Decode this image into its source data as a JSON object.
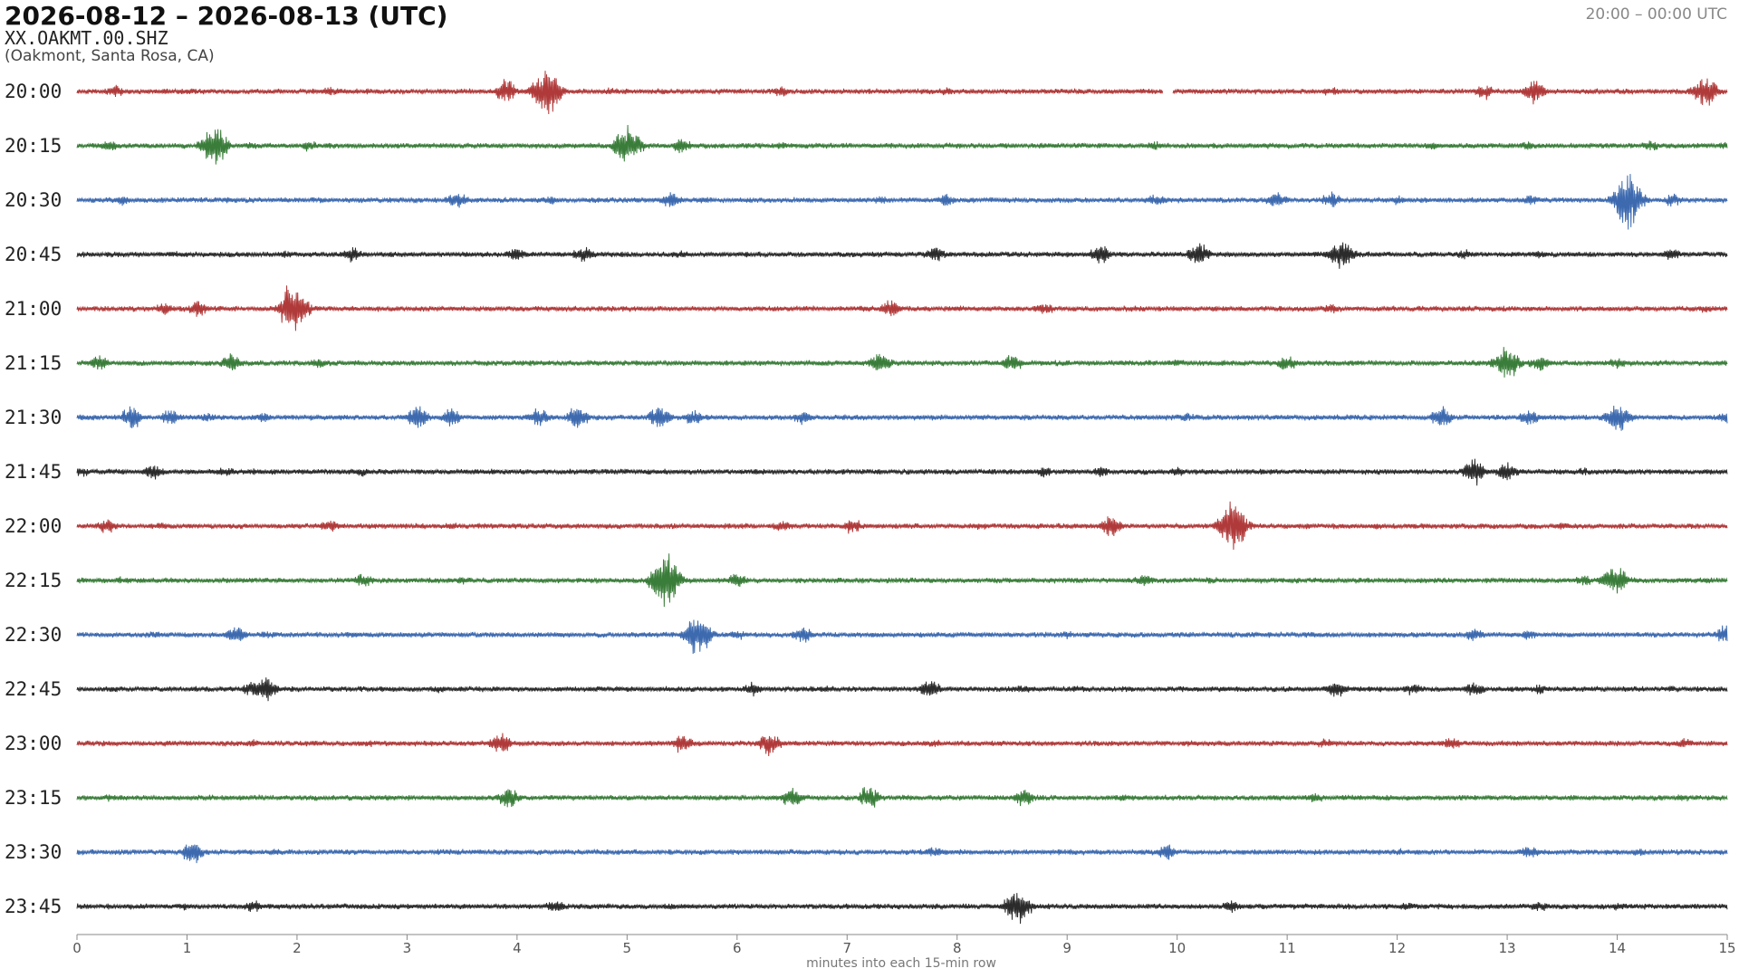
{
  "header": {
    "title": "2026-08-12 – 2026-08-13  (UTC)",
    "station": "XX.OAKMT.00.SHZ",
    "location": "(Oakmont, Santa Rosa, CA)",
    "time_range": "20:00 – 00:00 UTC"
  },
  "chart_data": {
    "type": "line",
    "title": "2026-08-12 – 2026-08-13  (UTC)",
    "xlabel": "minutes into each 15-min row",
    "ylabel": "",
    "xlim": [
      0,
      15
    ],
    "x_ticks": [
      "0",
      "1",
      "2",
      "3",
      "4",
      "5",
      "6",
      "7",
      "8",
      "9",
      "10",
      "11",
      "12",
      "13",
      "14",
      "15"
    ],
    "grid": false,
    "legend": "none",
    "colors": [
      "#b03a3a",
      "#3a7d3a",
      "#3d6aaf",
      "#2b2b2b"
    ],
    "base_amplitude": 0.07,
    "rows": [
      {
        "label": "20:00",
        "bursts": [
          [
            0.35,
            0.25
          ],
          [
            1.0,
            0.12
          ],
          [
            2.3,
            0.18
          ],
          [
            3.9,
            0.45
          ],
          [
            4.27,
            0.95
          ],
          [
            4.85,
            0.15
          ],
          [
            6.4,
            0.22
          ],
          [
            7.9,
            0.15
          ],
          [
            11.4,
            0.18
          ],
          [
            12.8,
            0.3
          ],
          [
            13.25,
            0.48
          ],
          [
            14.7,
            0.12
          ],
          [
            14.8,
            0.55
          ]
        ],
        "gaps": [
          [
            9.87,
            9.96
          ]
        ]
      },
      {
        "label": "20:15",
        "bursts": [
          [
            0.3,
            0.22
          ],
          [
            1.25,
            0.7
          ],
          [
            1.6,
            0.15
          ],
          [
            2.1,
            0.2
          ],
          [
            5.0,
            0.75
          ],
          [
            5.5,
            0.3
          ],
          [
            6.4,
            0.15
          ],
          [
            9.8,
            0.18
          ],
          [
            10.8,
            0.12
          ],
          [
            12.3,
            0.15
          ],
          [
            13.2,
            0.18
          ],
          [
            14.3,
            0.2
          ],
          [
            15.0,
            0.15
          ]
        ],
        "gaps": []
      },
      {
        "label": "20:30",
        "bursts": [
          [
            0.4,
            0.2
          ],
          [
            1.4,
            0.12
          ],
          [
            3.45,
            0.35
          ],
          [
            4.3,
            0.18
          ],
          [
            5.4,
            0.3
          ],
          [
            5.7,
            0.15
          ],
          [
            7.3,
            0.15
          ],
          [
            7.9,
            0.25
          ],
          [
            9.8,
            0.25
          ],
          [
            10.9,
            0.32
          ],
          [
            11.4,
            0.3
          ],
          [
            12.0,
            0.18
          ],
          [
            13.2,
            0.2
          ],
          [
            14.1,
            1.0
          ],
          [
            14.5,
            0.25
          ]
        ],
        "gaps": []
      },
      {
        "label": "20:45",
        "bursts": [
          [
            0.9,
            0.12
          ],
          [
            1.9,
            0.15
          ],
          [
            2.5,
            0.3
          ],
          [
            4.0,
            0.28
          ],
          [
            4.6,
            0.3
          ],
          [
            5.5,
            0.15
          ],
          [
            7.8,
            0.3
          ],
          [
            9.3,
            0.4
          ],
          [
            10.2,
            0.45
          ],
          [
            11.5,
            0.55
          ],
          [
            12.6,
            0.2
          ],
          [
            13.3,
            0.15
          ],
          [
            14.5,
            0.25
          ]
        ],
        "gaps": []
      },
      {
        "label": "21:00",
        "bursts": [
          [
            0.8,
            0.25
          ],
          [
            1.1,
            0.3
          ],
          [
            1.97,
            1.0
          ],
          [
            2.5,
            0.1
          ],
          [
            7.4,
            0.35
          ],
          [
            8.0,
            0.15
          ],
          [
            8.8,
            0.25
          ],
          [
            9.6,
            0.12
          ],
          [
            11.4,
            0.2
          ],
          [
            12.2,
            0.1
          ],
          [
            14.8,
            0.15
          ]
        ],
        "gaps": []
      },
      {
        "label": "21:15",
        "bursts": [
          [
            0.2,
            0.3
          ],
          [
            1.4,
            0.35
          ],
          [
            2.2,
            0.2
          ],
          [
            7.3,
            0.45
          ],
          [
            8.5,
            0.35
          ],
          [
            10.0,
            0.12
          ],
          [
            11.0,
            0.3
          ],
          [
            13.0,
            0.6
          ],
          [
            13.3,
            0.35
          ],
          [
            14.0,
            0.2
          ]
        ],
        "gaps": []
      },
      {
        "label": "21:30",
        "bursts": [
          [
            0.5,
            0.45
          ],
          [
            0.85,
            0.3
          ],
          [
            1.2,
            0.18
          ],
          [
            1.7,
            0.2
          ],
          [
            3.1,
            0.5
          ],
          [
            3.4,
            0.35
          ],
          [
            4.2,
            0.35
          ],
          [
            4.55,
            0.45
          ],
          [
            5.3,
            0.5
          ],
          [
            5.6,
            0.3
          ],
          [
            6.6,
            0.28
          ],
          [
            8.2,
            0.12
          ],
          [
            10.1,
            0.2
          ],
          [
            12.4,
            0.45
          ],
          [
            13.2,
            0.28
          ],
          [
            14.0,
            0.55
          ],
          [
            15.0,
            0.25
          ]
        ],
        "gaps": []
      },
      {
        "label": "21:45",
        "bursts": [
          [
            0.05,
            0.2
          ],
          [
            0.7,
            0.3
          ],
          [
            1.35,
            0.18
          ],
          [
            1.6,
            0.12
          ],
          [
            2.6,
            0.18
          ],
          [
            3.8,
            0.12
          ],
          [
            6.2,
            0.12
          ],
          [
            8.8,
            0.22
          ],
          [
            9.3,
            0.2
          ],
          [
            10.0,
            0.18
          ],
          [
            12.7,
            0.5
          ],
          [
            13.0,
            0.4
          ],
          [
            13.7,
            0.15
          ],
          [
            14.5,
            0.12
          ]
        ],
        "gaps": []
      },
      {
        "label": "22:00",
        "bursts": [
          [
            0.28,
            0.3
          ],
          [
            0.75,
            0.15
          ],
          [
            2.3,
            0.25
          ],
          [
            3.4,
            0.15
          ],
          [
            6.4,
            0.2
          ],
          [
            7.05,
            0.3
          ],
          [
            8.2,
            0.15
          ],
          [
            9.4,
            0.4
          ],
          [
            10.5,
            0.95
          ],
          [
            11.8,
            0.12
          ],
          [
            13.5,
            0.15
          ]
        ],
        "gaps": []
      },
      {
        "label": "22:15",
        "bursts": [
          [
            0.4,
            0.15
          ],
          [
            2.6,
            0.28
          ],
          [
            3.5,
            0.15
          ],
          [
            5.35,
            1.0
          ],
          [
            6.0,
            0.28
          ],
          [
            9.7,
            0.25
          ],
          [
            10.3,
            0.15
          ],
          [
            13.7,
            0.2
          ],
          [
            13.98,
            0.55
          ],
          [
            14.8,
            0.12
          ]
        ],
        "gaps": []
      },
      {
        "label": "22:30",
        "bursts": [
          [
            0.7,
            0.15
          ],
          [
            1.45,
            0.35
          ],
          [
            1.7,
            0.15
          ],
          [
            2.5,
            0.12
          ],
          [
            5.65,
            0.75
          ],
          [
            6.0,
            0.2
          ],
          [
            6.6,
            0.32
          ],
          [
            9.0,
            0.15
          ],
          [
            11.2,
            0.12
          ],
          [
            12.7,
            0.25
          ],
          [
            13.2,
            0.18
          ],
          [
            15.0,
            0.45
          ]
        ],
        "gaps": []
      },
      {
        "label": "22:45",
        "bursts": [
          [
            1.6,
            0.3
          ],
          [
            1.72,
            0.45
          ],
          [
            3.3,
            0.15
          ],
          [
            6.15,
            0.28
          ],
          [
            6.8,
            0.12
          ],
          [
            7.75,
            0.38
          ],
          [
            8.6,
            0.2
          ],
          [
            9.1,
            0.15
          ],
          [
            10.4,
            0.12
          ],
          [
            11.45,
            0.35
          ],
          [
            12.15,
            0.25
          ],
          [
            12.7,
            0.3
          ],
          [
            13.3,
            0.2
          ],
          [
            14.5,
            0.15
          ]
        ],
        "gaps": []
      },
      {
        "label": "23:00",
        "bursts": [
          [
            0.8,
            0.12
          ],
          [
            1.6,
            0.15
          ],
          [
            2.65,
            0.15
          ],
          [
            3.85,
            0.45
          ],
          [
            5.5,
            0.35
          ],
          [
            6.3,
            0.45
          ],
          [
            7.8,
            0.15
          ],
          [
            10.1,
            0.12
          ],
          [
            11.35,
            0.2
          ],
          [
            12.5,
            0.25
          ],
          [
            14.6,
            0.2
          ]
        ],
        "gaps": []
      },
      {
        "label": "23:15",
        "bursts": [
          [
            0.3,
            0.15
          ],
          [
            3.92,
            0.4
          ],
          [
            6.5,
            0.4
          ],
          [
            7.2,
            0.45
          ],
          [
            8.6,
            0.35
          ],
          [
            9.5,
            0.15
          ],
          [
            11.25,
            0.2
          ],
          [
            14.6,
            0.15
          ]
        ],
        "gaps": []
      },
      {
        "label": "23:30",
        "bursts": [
          [
            1.05,
            0.45
          ],
          [
            1.8,
            0.15
          ],
          [
            3.3,
            0.12
          ],
          [
            7.8,
            0.2
          ],
          [
            9.9,
            0.3
          ],
          [
            12.0,
            0.15
          ],
          [
            13.2,
            0.28
          ],
          [
            14.2,
            0.15
          ]
        ],
        "gaps": []
      },
      {
        "label": "23:45",
        "bursts": [
          [
            0.95,
            0.15
          ],
          [
            1.6,
            0.25
          ],
          [
            4.35,
            0.25
          ],
          [
            5.4,
            0.15
          ],
          [
            8.55,
            0.6
          ],
          [
            10.5,
            0.25
          ],
          [
            12.1,
            0.2
          ],
          [
            13.3,
            0.2
          ],
          [
            14.0,
            0.15
          ]
        ],
        "gaps": []
      }
    ]
  }
}
